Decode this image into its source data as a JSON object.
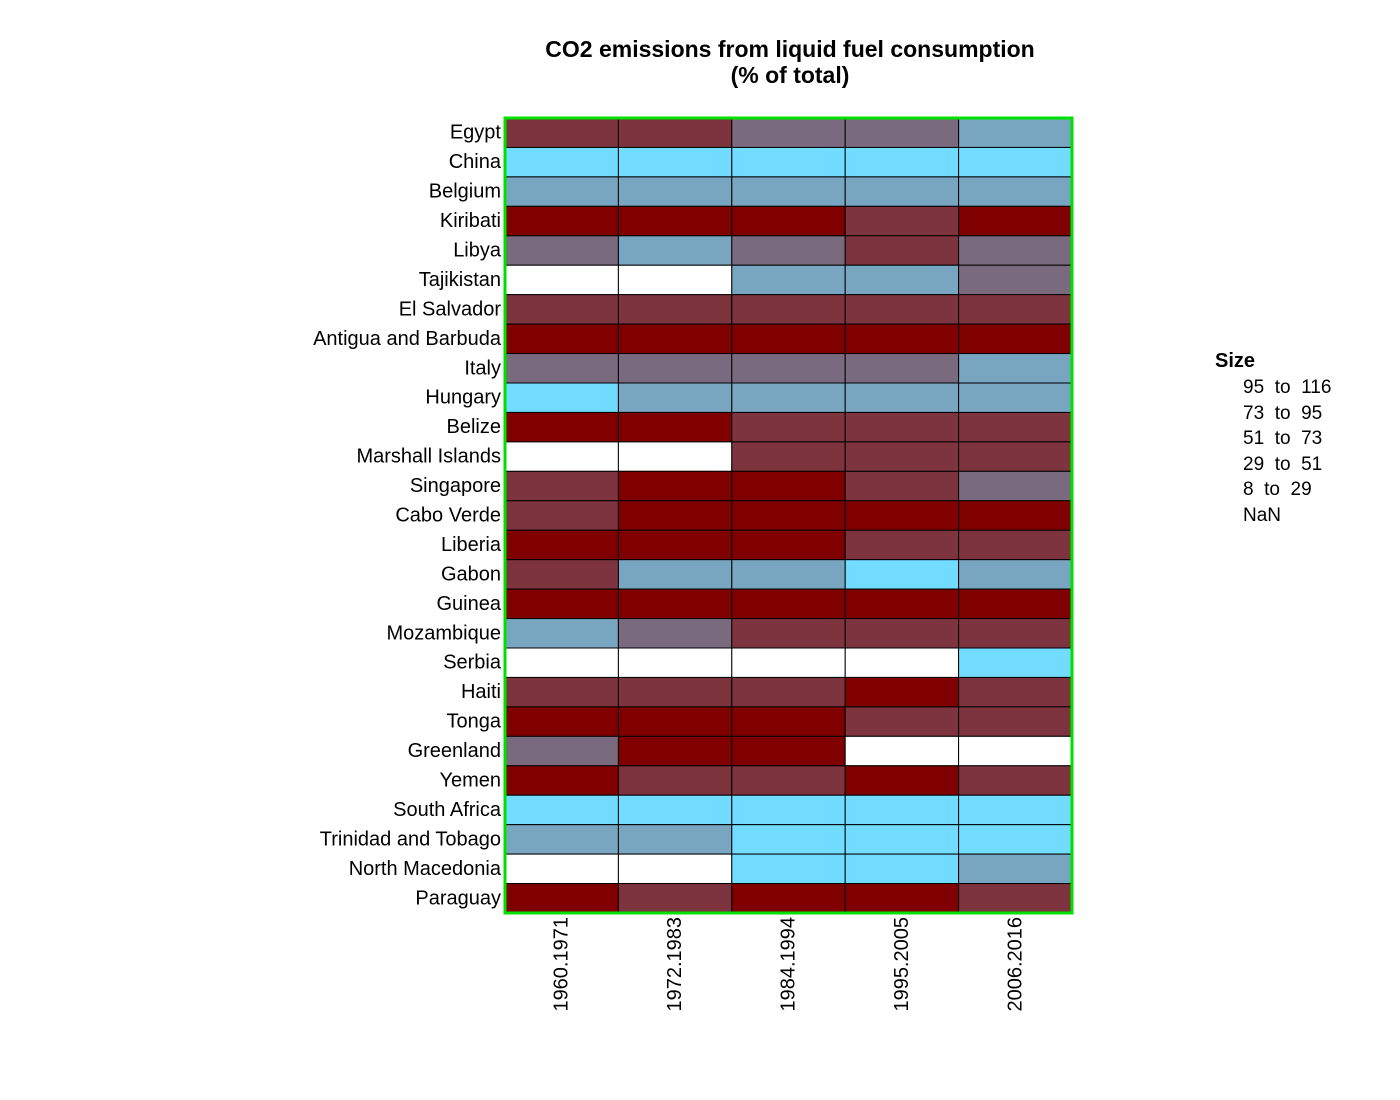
{
  "chart_data": {
    "type": "heatmap",
    "title_lines": [
      "CO2 emissions from liquid fuel consumption",
      "(% of total)"
    ],
    "x_categories": [
      "1960.1971",
      "1972.1983",
      "1984.1994",
      "1995.2005",
      "2006.2016"
    ],
    "y_categories": [
      "Egypt",
      "China",
      "Belgium",
      "Kiribati",
      "Libya",
      "Tajikistan",
      "El Salvador",
      "Antigua and Barbuda",
      "Italy",
      "Hungary",
      "Belize",
      "Marshall Islands",
      "Singapore",
      "Cabo Verde",
      "Liberia",
      "Gabon",
      "Guinea",
      "Mozambique",
      "Serbia",
      "Haiti",
      "Tonga",
      "Greenland",
      "Yemen",
      "South Africa",
      "Trinidad and Tobago",
      "North Macedonia",
      "Paraguay"
    ],
    "bins": [
      "95  to  116",
      "73  to  95",
      "51  to  73",
      "29  to  51",
      "8  to  29",
      "NaN"
    ],
    "bin_colors": [
      "#800000",
      "#7d343f",
      "#7a6a7e",
      "#78a5c0",
      "#71dcff",
      "#ffffff"
    ],
    "cells": [
      [
        1,
        1,
        2,
        2,
        3
      ],
      [
        4,
        4,
        4,
        4,
        4
      ],
      [
        3,
        3,
        3,
        3,
        3
      ],
      [
        0,
        0,
        0,
        1,
        0
      ],
      [
        2,
        3,
        2,
        1,
        2
      ],
      [
        5,
        5,
        3,
        3,
        2
      ],
      [
        1,
        1,
        1,
        1,
        1
      ],
      [
        0,
        0,
        0,
        0,
        0
      ],
      [
        2,
        2,
        2,
        2,
        3
      ],
      [
        4,
        3,
        3,
        3,
        3
      ],
      [
        0,
        0,
        1,
        1,
        1
      ],
      [
        5,
        5,
        1,
        1,
        1
      ],
      [
        1,
        0,
        0,
        1,
        2
      ],
      [
        1,
        0,
        0,
        0,
        0
      ],
      [
        0,
        0,
        0,
        1,
        1
      ],
      [
        1,
        3,
        3,
        4,
        3
      ],
      [
        0,
        0,
        0,
        0,
        0
      ],
      [
        3,
        2,
        1,
        1,
        1
      ],
      [
        5,
        5,
        5,
        5,
        4
      ],
      [
        1,
        1,
        1,
        0,
        1
      ],
      [
        0,
        0,
        0,
        1,
        1
      ],
      [
        2,
        0,
        0,
        5,
        5
      ],
      [
        0,
        1,
        1,
        0,
        1
      ],
      [
        4,
        4,
        4,
        4,
        4
      ],
      [
        3,
        3,
        4,
        4,
        4
      ],
      [
        5,
        5,
        4,
        4,
        3
      ],
      [
        0,
        1,
        0,
        0,
        1
      ]
    ],
    "legend": {
      "title": "Size",
      "placement": "right"
    },
    "frame_color": "#00e000"
  }
}
